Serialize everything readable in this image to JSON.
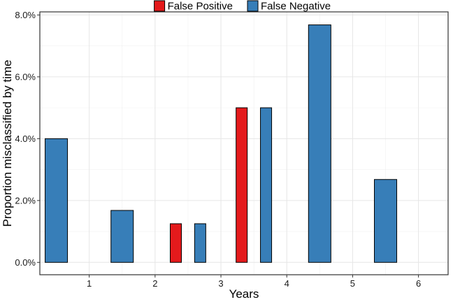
{
  "chart_data": {
    "type": "bar",
    "xlabel": "Years",
    "ylabel": "Proportion misclassified by time",
    "x_ticks": [
      "1",
      "2",
      "3",
      "4",
      "5",
      "6"
    ],
    "y_ticks": [
      "0.0%",
      "2.0%",
      "4.0%",
      "6.0%",
      "8.0%"
    ],
    "ylim": [
      -0.004,
      0.081
    ],
    "xlim": [
      0.25,
      6.45
    ],
    "grid": true,
    "legend_position": "top",
    "series": [
      {
        "name": "False Positive",
        "color": "#E41A1C",
        "points": [
          {
            "x": 3,
            "value": 0.0125
          },
          {
            "x": 4,
            "value": 0.05
          }
        ]
      },
      {
        "name": "False Negative",
        "color": "#377EB8",
        "points": [
          {
            "x": 1,
            "value": 0.04
          },
          {
            "x": 2,
            "value": 0.0168
          },
          {
            "x": 3,
            "value": 0.0125
          },
          {
            "x": 4,
            "value": 0.05
          },
          {
            "x": 5,
            "value": 0.0768
          },
          {
            "x": 6,
            "value": 0.0268
          }
        ]
      }
    ]
  }
}
